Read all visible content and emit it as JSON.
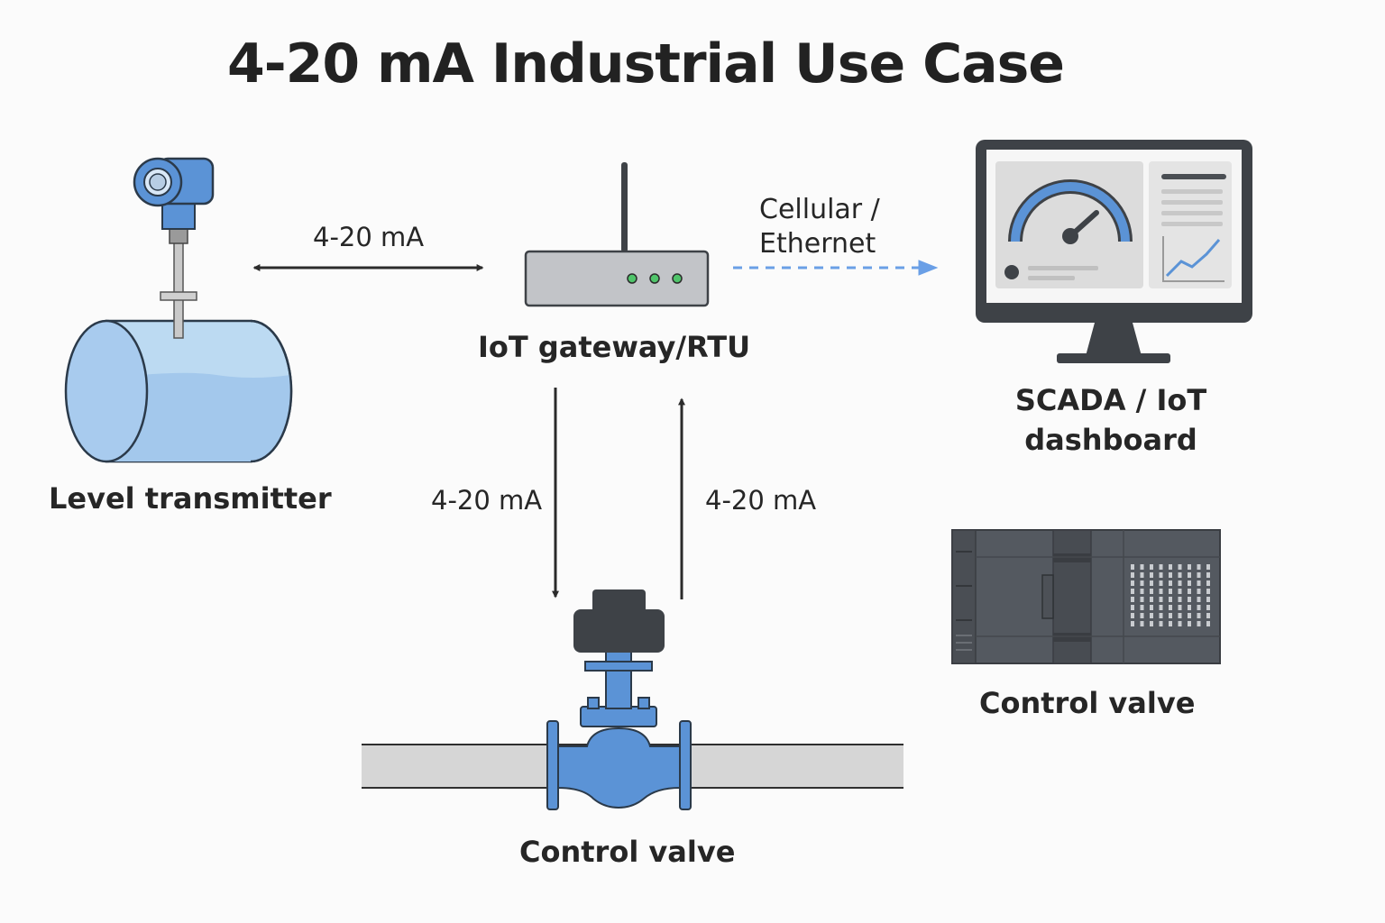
{
  "title": "4-20 mA Industrial Use Case",
  "nodes": {
    "level_transmitter": "Level transmitter",
    "gateway": "IoT gateway/RTU",
    "scada_line1": "SCADA / IoT",
    "scada_line2": "dashboard",
    "plc_caption": "Control valve",
    "valve_caption": "Control valve"
  },
  "links": {
    "transmitter_gateway": "4-20 mA",
    "gateway_to_valve": "4-20 mA",
    "valve_to_gateway": "4-20 mA",
    "network_line1": "Cellular /",
    "network_line2": "Ethernet"
  },
  "colors": {
    "accent_blue": "#5b93d6",
    "liquid_blue": "#a7cdee",
    "dark_gray": "#3e4247",
    "pipe_gray": "#d6d6d6",
    "dashed_link": "#6a9fe6"
  }
}
